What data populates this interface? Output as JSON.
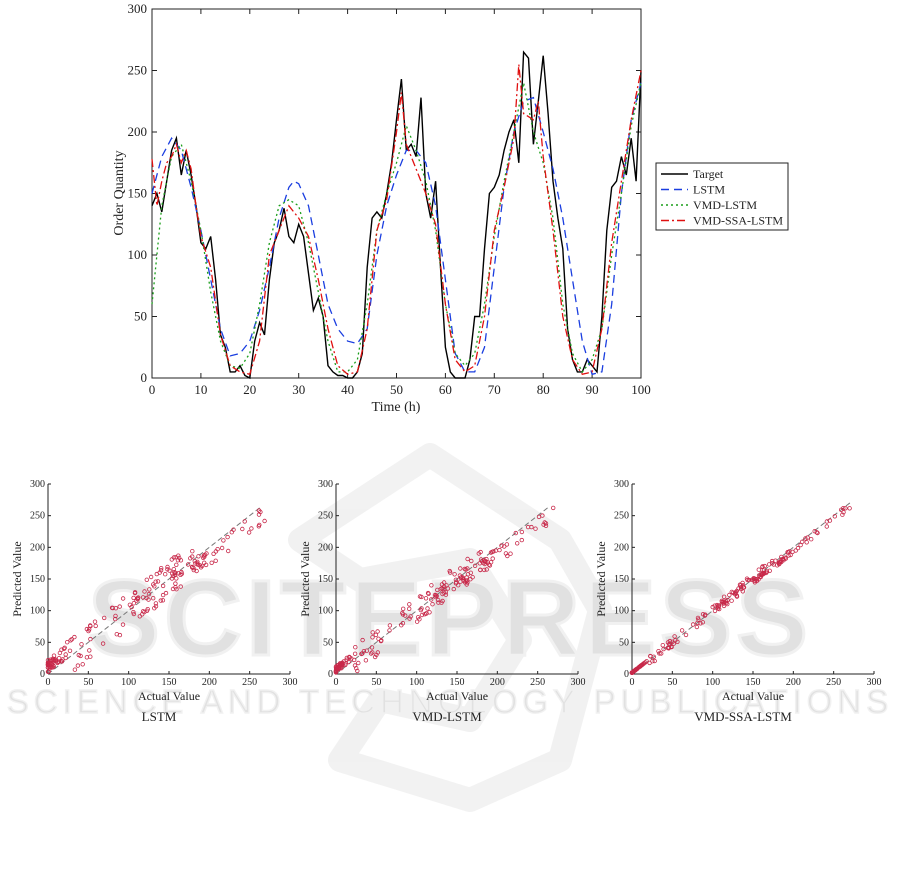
{
  "watermark": {
    "brand": "SCITEPRESS",
    "tagline": "SCIENCE AND TECHNOLOGY PUBLICATIONS"
  },
  "chart_data": [
    {
      "type": "line",
      "title": "",
      "xlabel": "Time (h)",
      "ylabel": "Order Quantity",
      "xlim": [
        0,
        100
      ],
      "ylim": [
        0,
        300
      ],
      "xticks": [
        "0",
        "10",
        "20",
        "30",
        "40",
        "50",
        "60",
        "70",
        "80",
        "90",
        "100"
      ],
      "yticks": [
        "0",
        "50",
        "100",
        "150",
        "200",
        "250",
        "300"
      ],
      "grid": false,
      "legend_position": "right",
      "series": [
        {
          "name": "Target",
          "color": "#000000",
          "dash": "solid",
          "x": [
            0,
            1,
            2,
            3,
            4,
            5,
            6,
            7,
            8,
            9,
            10,
            11,
            12,
            13,
            14,
            15,
            16,
            17,
            18,
            19,
            20,
            21,
            22,
            23,
            24,
            25,
            26,
            27,
            28,
            29,
            30,
            31,
            32,
            33,
            34,
            35,
            36,
            37,
            38,
            39,
            40,
            41,
            42,
            43,
            44,
            45,
            46,
            47,
            48,
            49,
            50,
            51,
            52,
            53,
            54,
            55,
            56,
            57,
            58,
            59,
            60,
            61,
            62,
            63,
            64,
            65,
            66,
            67,
            68,
            69,
            70,
            71,
            72,
            73,
            74,
            75,
            76,
            77,
            78,
            79,
            80,
            81,
            82,
            83,
            84,
            85,
            86,
            87,
            88,
            89,
            90,
            91,
            92,
            93,
            94,
            95,
            96,
            97,
            98,
            99,
            100
          ],
          "values": [
            140,
            150,
            135,
            160,
            185,
            195,
            165,
            185,
            165,
            140,
            110,
            105,
            115,
            80,
            35,
            25,
            5,
            5,
            10,
            2,
            0,
            30,
            45,
            35,
            80,
            110,
            120,
            138,
            115,
            110,
            125,
            115,
            85,
            55,
            65,
            50,
            10,
            5,
            2,
            2,
            0,
            0,
            5,
            20,
            90,
            130,
            135,
            130,
            150,
            175,
            210,
            243,
            185,
            190,
            180,
            228,
            150,
            130,
            160,
            90,
            25,
            5,
            0,
            0,
            0,
            15,
            50,
            50,
            105,
            150,
            155,
            165,
            185,
            200,
            210,
            175,
            265,
            260,
            190,
            225,
            262,
            215,
            160,
            130,
            105,
            40,
            15,
            5,
            5,
            15,
            10,
            5,
            50,
            120,
            155,
            160,
            180,
            165,
            195,
            160,
            250
          ]
        },
        {
          "name": "LSTM",
          "color": "#1a3ee0",
          "dash": "8,5",
          "x": [
            0,
            2,
            4,
            6,
            8,
            10,
            12,
            14,
            16,
            18,
            20,
            22,
            24,
            26,
            28,
            29,
            30,
            32,
            34,
            36,
            38,
            40,
            42,
            44,
            46,
            48,
            50,
            52,
            54,
            56,
            58,
            60,
            62,
            64,
            66,
            68,
            70,
            72,
            74,
            76,
            78,
            80,
            82,
            84,
            86,
            88,
            90,
            92,
            94,
            96,
            98,
            100
          ],
          "values": [
            150,
            180,
            195,
            185,
            155,
            120,
            80,
            40,
            18,
            20,
            30,
            55,
            90,
            130,
            155,
            160,
            158,
            140,
            100,
            60,
            40,
            30,
            28,
            40,
            100,
            140,
            165,
            185,
            185,
            175,
            140,
            80,
            20,
            5,
            5,
            25,
            90,
            155,
            200,
            225,
            228,
            200,
            170,
            130,
            80,
            30,
            3,
            5,
            60,
            150,
            210,
            240
          ]
        },
        {
          "name": "VMD-LSTM",
          "color": "#1a9e1a",
          "dash": "2,3",
          "x": [
            0,
            2,
            4,
            6,
            8,
            10,
            12,
            14,
            16,
            18,
            20,
            22,
            24,
            26,
            28,
            30,
            32,
            34,
            36,
            38,
            40,
            42,
            44,
            46,
            48,
            50,
            52,
            54,
            56,
            58,
            60,
            62,
            64,
            66,
            68,
            70,
            72,
            74,
            76,
            78,
            80,
            82,
            84,
            86,
            88,
            90,
            92,
            94,
            96,
            98,
            100
          ],
          "values": [
            60,
            140,
            180,
            190,
            160,
            120,
            70,
            30,
            10,
            8,
            20,
            60,
            110,
            140,
            145,
            140,
            110,
            70,
            30,
            5,
            5,
            15,
            60,
            120,
            150,
            175,
            205,
            185,
            160,
            120,
            60,
            20,
            10,
            20,
            60,
            115,
            160,
            200,
            240,
            200,
            175,
            130,
            60,
            20,
            5,
            15,
            40,
            100,
            150,
            205,
            240
          ]
        },
        {
          "name": "VMD-SSA-LSTM",
          "color": "#e01010",
          "dash": "8,3,2,3",
          "x": [
            0,
            1,
            2,
            3,
            4,
            5,
            6,
            7,
            8,
            9,
            10,
            12,
            14,
            16,
            18,
            20,
            22,
            24,
            26,
            28,
            30,
            32,
            34,
            36,
            38,
            40,
            42,
            44,
            46,
            48,
            50,
            51,
            52,
            54,
            56,
            58,
            60,
            62,
            64,
            66,
            68,
            70,
            72,
            74,
            75,
            76,
            78,
            79,
            80,
            82,
            84,
            86,
            88,
            90,
            92,
            94,
            96,
            98,
            100
          ],
          "values": [
            178,
            140,
            160,
            175,
            180,
            190,
            175,
            185,
            170,
            140,
            115,
            90,
            35,
            10,
            5,
            3,
            30,
            100,
            120,
            140,
            130,
            115,
            80,
            40,
            10,
            3,
            5,
            40,
            120,
            145,
            200,
            232,
            190,
            170,
            150,
            125,
            60,
            15,
            5,
            10,
            50,
            120,
            155,
            195,
            255,
            215,
            210,
            225,
            180,
            120,
            50,
            15,
            3,
            5,
            40,
            110,
            160,
            210,
            250
          ]
        }
      ]
    },
    {
      "type": "scatter",
      "title": "LSTM",
      "xlabel": "Actual Value",
      "ylabel": "Predicted Value",
      "xlim": [
        0,
        300
      ],
      "ylim": [
        0,
        300
      ],
      "xticks": [
        "0",
        "50",
        "100",
        "150",
        "200",
        "250",
        "300"
      ],
      "yticks": [
        "0",
        "50",
        "100",
        "150",
        "200",
        "250",
        "300"
      ],
      "reference_line": {
        "x": [
          0,
          265
        ],
        "y": [
          0,
          265
        ]
      },
      "spread": 28,
      "bias": 20
    },
    {
      "type": "scatter",
      "title": "VMD-LSTM",
      "xlabel": "Actual Value",
      "ylabel": "Predicted Value",
      "xlim": [
        0,
        300
      ],
      "ylim": [
        0,
        300
      ],
      "xticks": [
        "0",
        "50",
        "100",
        "150",
        "200",
        "250",
        "300"
      ],
      "yticks": [
        "0",
        "50",
        "100",
        "150",
        "200",
        "250",
        "300"
      ],
      "reference_line": {
        "x": [
          0,
          265
        ],
        "y": [
          0,
          265
        ]
      },
      "spread": 22,
      "bias": 10
    },
    {
      "type": "scatter",
      "title": "VMD-SSA-LSTM",
      "xlabel": "Actual Value",
      "ylabel": "Predicted Value",
      "xlim": [
        0,
        300
      ],
      "ylim": [
        0,
        300
      ],
      "xticks": [
        "0",
        "50",
        "100",
        "150",
        "200",
        "250",
        "300"
      ],
      "yticks": [
        "0",
        "50",
        "100",
        "150",
        "200",
        "250",
        "300"
      ],
      "reference_line": {
        "x": [
          0,
          272
        ],
        "y": [
          0,
          272
        ]
      },
      "spread": 8,
      "bias": 0
    }
  ]
}
